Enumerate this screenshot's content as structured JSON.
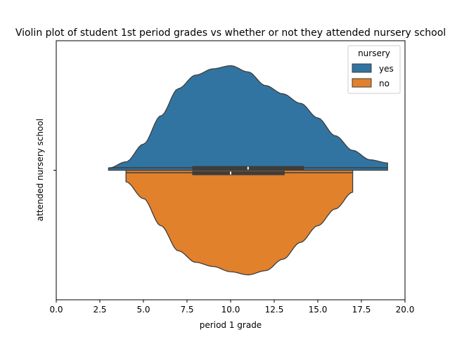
{
  "chart_data": {
    "type": "violin",
    "title": "Violin plot of student 1st period grades vs whether or not they attended nursery school",
    "xlabel": "period 1 grade",
    "ylabel": "attended nursery school",
    "xlim": [
      0,
      20
    ],
    "x_ticks": [
      0,
      2.5,
      5,
      7.5,
      10,
      12.5,
      15,
      17.5,
      20
    ],
    "x_tick_labels": [
      "0.0",
      "2.5",
      "5.0",
      "7.5",
      "10.0",
      "12.5",
      "15.0",
      "17.5",
      "20.0"
    ],
    "split": true,
    "grid": false,
    "legend": {
      "title": "nursery",
      "position": "top-right",
      "entries": [
        {
          "label": "yes",
          "color": "#3274a1"
        },
        {
          "label": "no",
          "color": "#e1812c"
        }
      ]
    },
    "series": [
      {
        "name": "yes",
        "color": "#3274a1",
        "side": "upper",
        "range": [
          3,
          19
        ],
        "quartiles": [
          7.8,
          11,
          14.2
        ],
        "median": 11,
        "density": [
          [
            3,
            0.02
          ],
          [
            4,
            0.08
          ],
          [
            5,
            0.25
          ],
          [
            6,
            0.52
          ],
          [
            7,
            0.78
          ],
          [
            8,
            0.91
          ],
          [
            9,
            0.97
          ],
          [
            10,
            1.0
          ],
          [
            11,
            0.94
          ],
          [
            12,
            0.81
          ],
          [
            13,
            0.73
          ],
          [
            14,
            0.64
          ],
          [
            15,
            0.5
          ],
          [
            16,
            0.33
          ],
          [
            17,
            0.19
          ],
          [
            18,
            0.1
          ],
          [
            19,
            0.07
          ]
        ]
      },
      {
        "name": "no",
        "color": "#e1812c",
        "side": "lower",
        "range": [
          4,
          17
        ],
        "quartiles": [
          7.8,
          10,
          13.1
        ],
        "median": 10,
        "density": [
          [
            4,
            0.11
          ],
          [
            5,
            0.27
          ],
          [
            6,
            0.53
          ],
          [
            7,
            0.77
          ],
          [
            8,
            0.88
          ],
          [
            9,
            0.92
          ],
          [
            10,
            0.97
          ],
          [
            11,
            1.0
          ],
          [
            12,
            0.96
          ],
          [
            13,
            0.85
          ],
          [
            14,
            0.69
          ],
          [
            15,
            0.53
          ],
          [
            16,
            0.37
          ],
          [
            17,
            0.21
          ]
        ]
      }
    ]
  }
}
